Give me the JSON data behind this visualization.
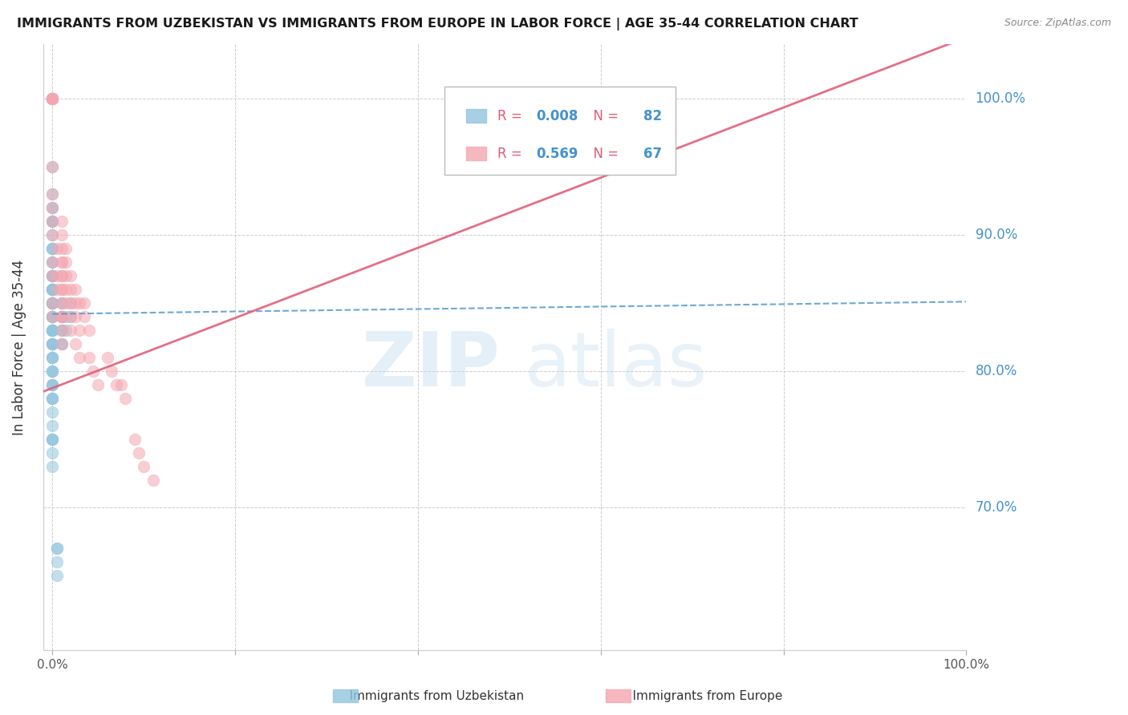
{
  "title": "IMMIGRANTS FROM UZBEKISTAN VS IMMIGRANTS FROM EUROPE IN LABOR FORCE | AGE 35-44 CORRELATION CHART",
  "source": "Source: ZipAtlas.com",
  "ylabel": "In Labor Force | Age 35-44",
  "xlim": [
    -0.01,
    1.0
  ],
  "ylim": [
    0.595,
    1.04
  ],
  "yticks": [
    0.7,
    0.8,
    0.9,
    1.0
  ],
  "ytick_labels": [
    "70.0%",
    "80.0%",
    "90.0%",
    "100.0%"
  ],
  "color_uzbek": "#92c5de",
  "color_europe": "#f4a6b0",
  "trendline_uzbek_color": "#5599cc",
  "trendline_europe_color": "#e0607a",
  "uzbek_x": [
    0.0,
    0.0,
    0.0,
    0.0,
    0.0,
    0.0,
    0.0,
    0.0,
    0.0,
    0.0,
    0.0,
    0.0,
    0.0,
    0.0,
    0.0,
    0.0,
    0.0,
    0.0,
    0.0,
    0.0,
    0.0,
    0.0,
    0.0,
    0.0,
    0.0,
    0.0,
    0.0,
    0.0,
    0.0,
    0.0,
    0.0,
    0.0,
    0.0,
    0.0,
    0.0,
    0.0,
    0.0,
    0.0,
    0.0,
    0.0,
    0.0,
    0.0,
    0.0,
    0.0,
    0.0,
    0.0,
    0.0,
    0.0,
    0.0,
    0.0,
    0.0,
    0.0,
    0.0,
    0.0,
    0.0,
    0.0,
    0.0,
    0.0,
    0.0,
    0.0,
    0.0,
    0.0,
    0.0,
    0.0,
    0.0,
    0.0,
    0.005,
    0.005,
    0.005,
    0.005,
    0.01,
    0.01,
    0.01,
    0.01,
    0.01,
    0.01,
    0.01,
    0.01,
    0.015,
    0.015,
    0.02,
    0.02
  ],
  "uzbek_y": [
    1.0,
    1.0,
    1.0,
    1.0,
    0.95,
    0.93,
    0.92,
    0.92,
    0.91,
    0.91,
    0.91,
    0.9,
    0.89,
    0.89,
    0.89,
    0.88,
    0.88,
    0.87,
    0.87,
    0.87,
    0.87,
    0.86,
    0.86,
    0.86,
    0.86,
    0.86,
    0.86,
    0.85,
    0.85,
    0.85,
    0.85,
    0.85,
    0.85,
    0.84,
    0.84,
    0.84,
    0.84,
    0.83,
    0.83,
    0.83,
    0.83,
    0.83,
    0.83,
    0.82,
    0.82,
    0.82,
    0.82,
    0.81,
    0.81,
    0.81,
    0.8,
    0.8,
    0.8,
    0.79,
    0.79,
    0.79,
    0.78,
    0.78,
    0.78,
    0.77,
    0.76,
    0.75,
    0.75,
    0.75,
    0.74,
    0.73,
    0.67,
    0.67,
    0.66,
    0.65,
    0.85,
    0.85,
    0.84,
    0.84,
    0.83,
    0.83,
    0.82,
    0.82,
    0.84,
    0.83,
    0.85,
    0.84
  ],
  "europe_x": [
    0.0,
    0.0,
    0.0,
    0.0,
    0.0,
    0.0,
    0.0,
    0.0,
    0.0,
    0.0,
    0.0,
    0.0,
    0.0,
    0.0,
    0.0,
    0.0,
    0.005,
    0.005,
    0.005,
    0.01,
    0.01,
    0.01,
    0.01,
    0.01,
    0.01,
    0.01,
    0.01,
    0.01,
    0.01,
    0.01,
    0.01,
    0.01,
    0.01,
    0.01,
    0.015,
    0.015,
    0.015,
    0.015,
    0.015,
    0.02,
    0.02,
    0.02,
    0.02,
    0.02,
    0.025,
    0.025,
    0.025,
    0.025,
    0.03,
    0.03,
    0.03,
    0.035,
    0.035,
    0.04,
    0.04,
    0.045,
    0.05,
    0.06,
    0.065,
    0.07,
    0.075,
    0.08,
    0.09,
    0.095,
    0.1,
    0.11,
    0.6
  ],
  "europe_y": [
    1.0,
    1.0,
    1.0,
    1.0,
    1.0,
    1.0,
    1.0,
    0.95,
    0.93,
    0.92,
    0.91,
    0.9,
    0.88,
    0.87,
    0.85,
    0.84,
    0.89,
    0.87,
    0.86,
    0.91,
    0.9,
    0.89,
    0.88,
    0.88,
    0.87,
    0.87,
    0.86,
    0.86,
    0.85,
    0.84,
    0.84,
    0.84,
    0.83,
    0.82,
    0.89,
    0.88,
    0.87,
    0.86,
    0.85,
    0.87,
    0.86,
    0.85,
    0.84,
    0.83,
    0.86,
    0.85,
    0.84,
    0.82,
    0.85,
    0.83,
    0.81,
    0.85,
    0.84,
    0.83,
    0.81,
    0.8,
    0.79,
    0.81,
    0.8,
    0.79,
    0.79,
    0.78,
    0.75,
    0.74,
    0.73,
    0.72,
    1.0
  ],
  "uzbek_trend_x": [
    0.0,
    1.0
  ],
  "uzbek_trend_y": [
    0.842,
    0.851
  ],
  "europe_trend_x": [
    -0.01,
    1.0
  ],
  "europe_trend_y": [
    0.785,
    1.045
  ],
  "legend_entries": [
    {
      "label": "R = 0.008   N = 82",
      "color_box": "#92c5de"
    },
    {
      "label": "R = 0.569   N = 67",
      "color_box": "#f4a6b0"
    }
  ],
  "bottom_legend": [
    {
      "label": "Immigrants from Uzbekistan",
      "color": "#92c5de"
    },
    {
      "label": "Immigrants from Europe",
      "color": "#f4a6b0"
    }
  ],
  "watermark_zip_color": "#c5ddf0",
  "watermark_atlas_color": "#c0d8ee"
}
